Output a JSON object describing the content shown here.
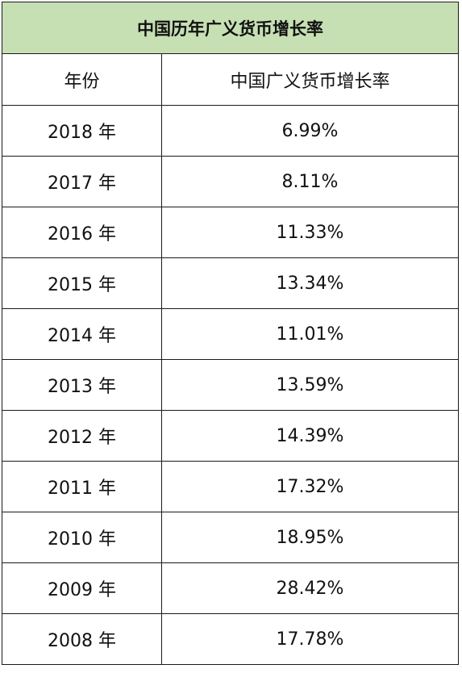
{
  "table": {
    "title": "中国历年广义货币增长率",
    "headers": [
      "年份",
      "中国广义货币增长率"
    ],
    "rows": [
      {
        "year": "2018 年",
        "rate": "6.99%"
      },
      {
        "year": "2017 年",
        "rate": "8.11%"
      },
      {
        "year": "2016 年",
        "rate": "11.33%"
      },
      {
        "year": "2015 年",
        "rate": "13.34%"
      },
      {
        "year": "2014 年",
        "rate": "11.01%"
      },
      {
        "year": "2013 年",
        "rate": "13.59%"
      },
      {
        "year": "2012 年",
        "rate": "14.39%"
      },
      {
        "year": "2011 年",
        "rate": "17.32%"
      },
      {
        "year": "2010 年",
        "rate": "18.95%"
      },
      {
        "year": "2009 年",
        "rate": "28.42%"
      },
      {
        "year": "2008 年",
        "rate": "17.78%"
      }
    ],
    "title_background": "#c6e0b4",
    "border_color": "#1a1a1a"
  }
}
